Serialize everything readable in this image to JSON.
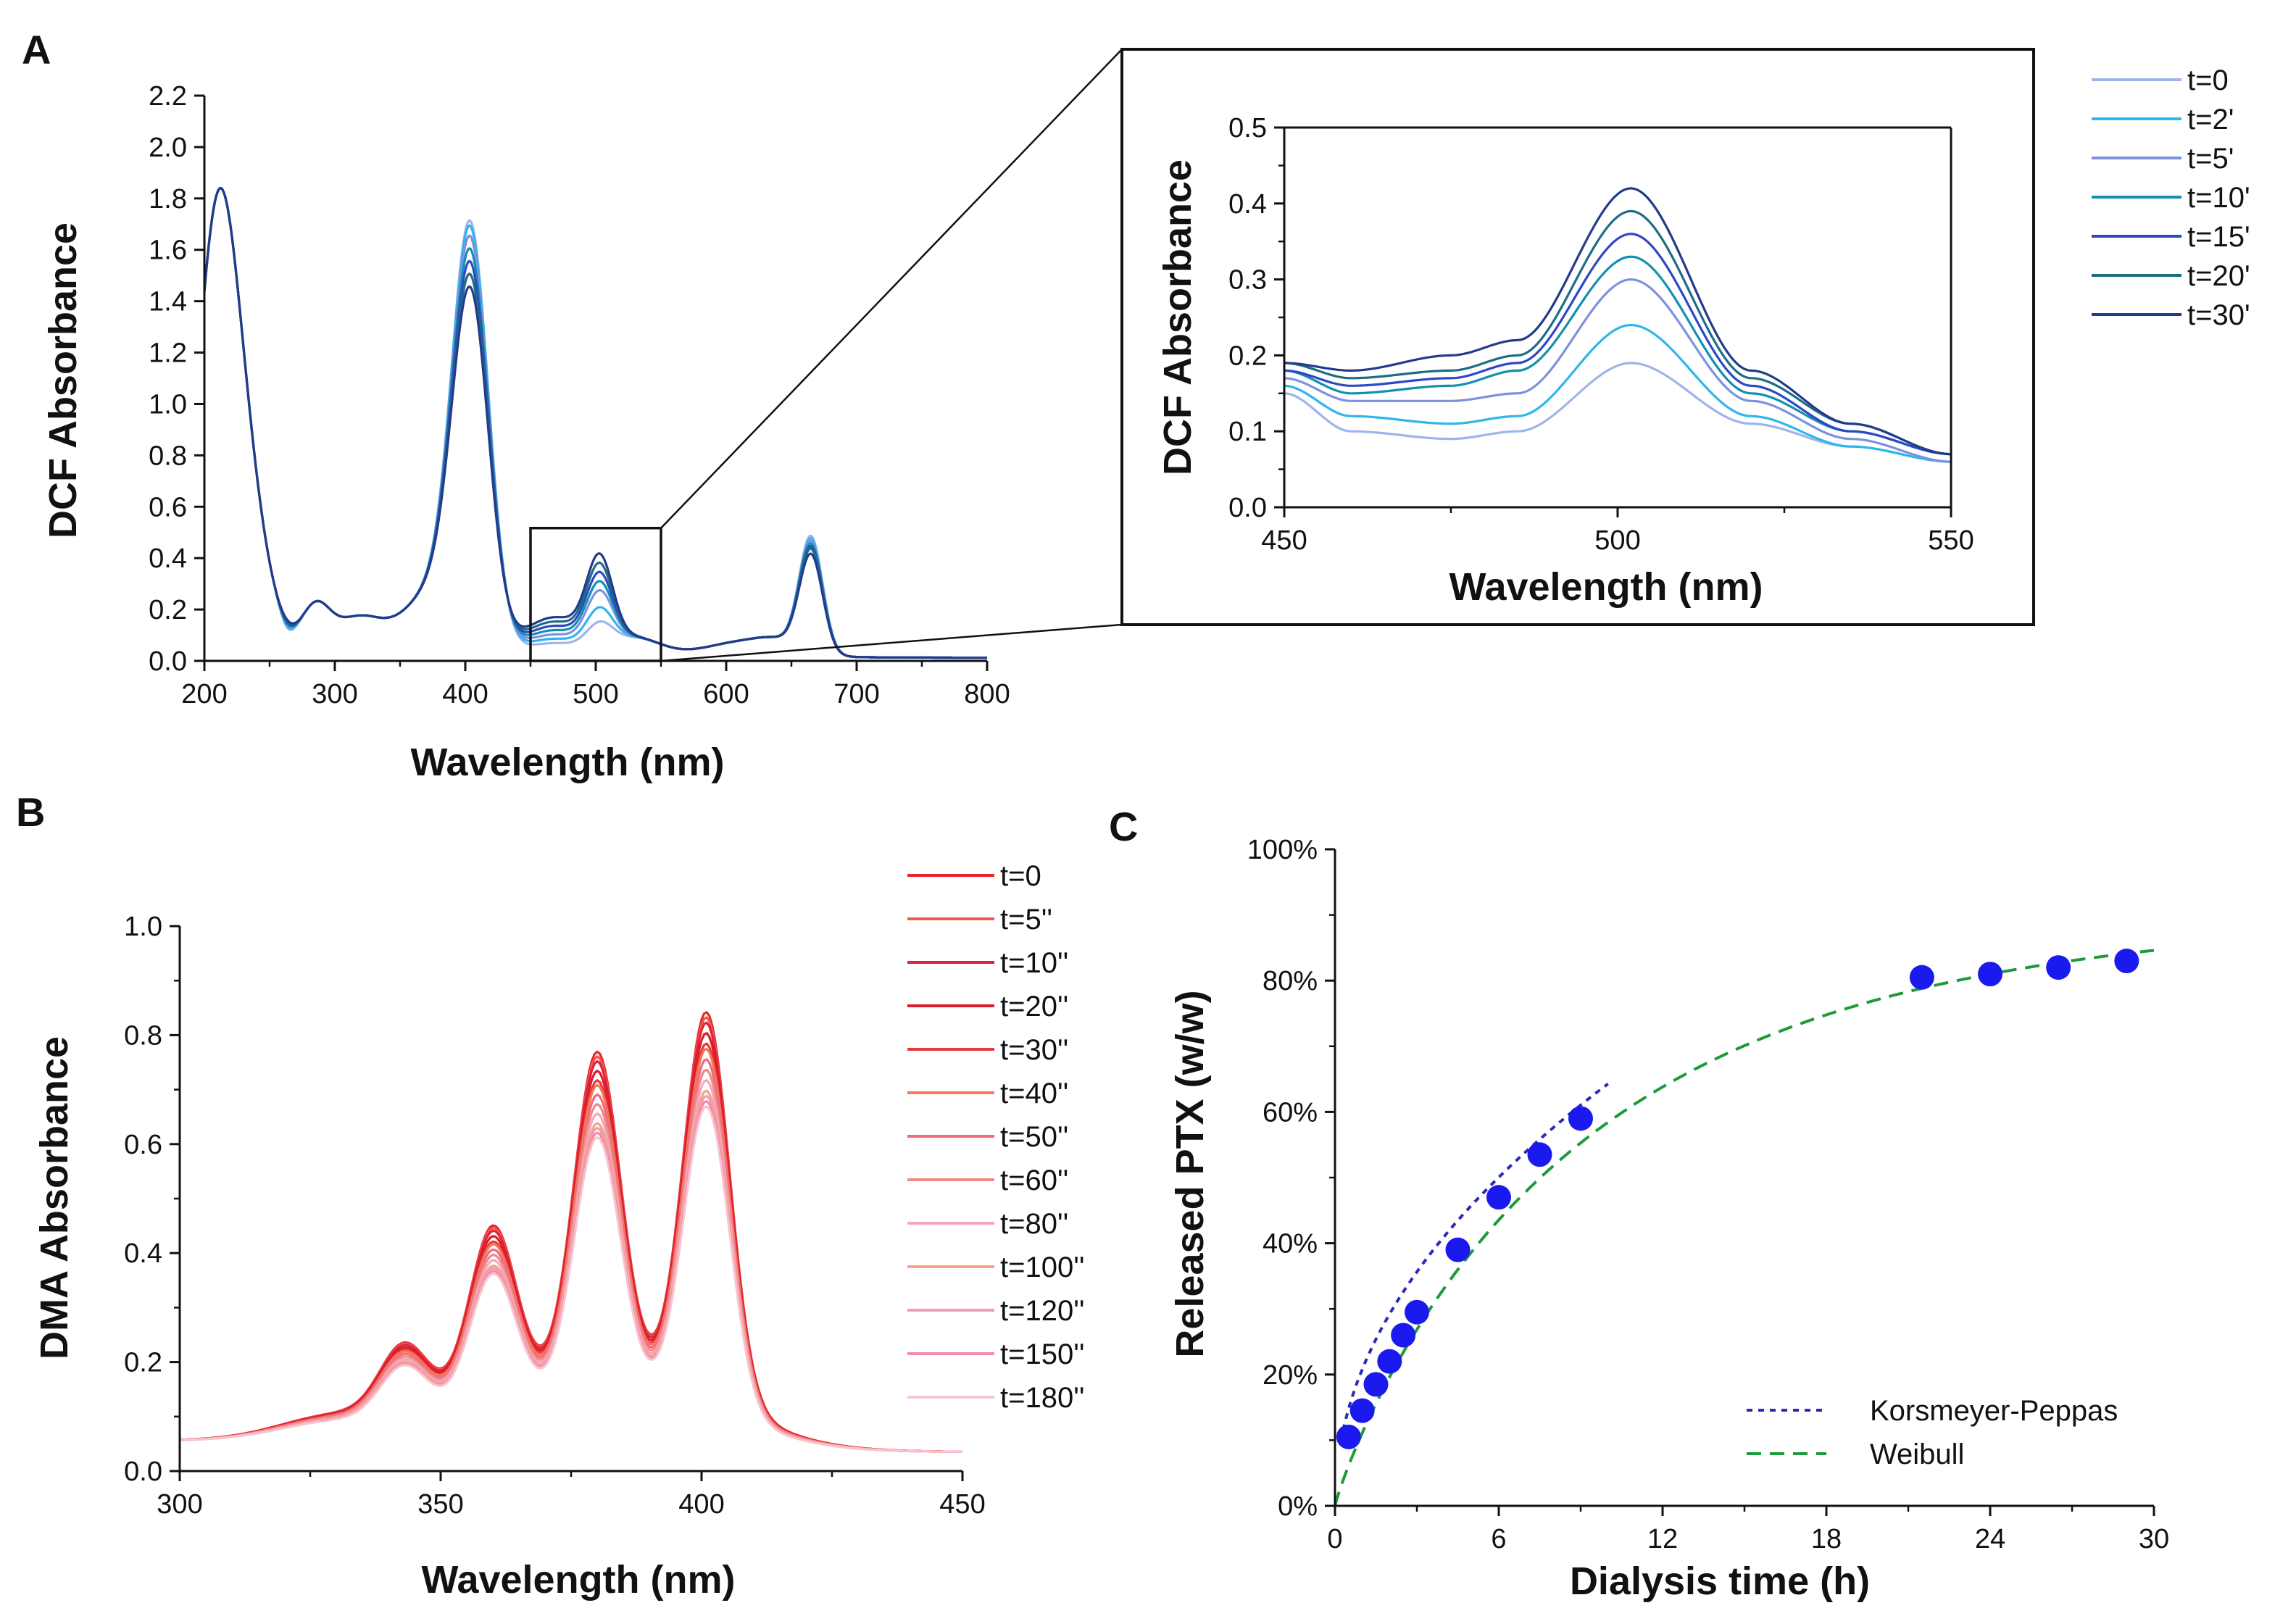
{
  "figure": {
    "panels": [
      {
        "label": "A"
      },
      {
        "label": "B"
      },
      {
        "label": "C"
      }
    ]
  },
  "chart_data": [
    {
      "id": "A-main",
      "type": "line",
      "xlabel": "Wavelength (nm)",
      "ylabel": "DCF Absorbance",
      "xlim": [
        200,
        800
      ],
      "ylim": [
        0,
        2.2
      ],
      "xticks": [
        200,
        300,
        400,
        500,
        600,
        700,
        800
      ],
      "yticks": [
        0.0,
        0.2,
        0.4,
        0.6,
        0.8,
        1.0,
        1.2,
        1.4,
        1.6,
        1.8,
        2.0,
        2.2
      ],
      "tick_decimals": 1,
      "zoom_box_x": [
        450,
        550
      ],
      "zoom_box_y": [
        0,
        0.5
      ],
      "series": [
        {
          "name": "t=0",
          "color": "#9fb4ea",
          "peak404": 1.71,
          "peak502": 0.19,
          "peak665": 0.52
        },
        {
          "name": "t=2'",
          "color": "#2eb6ec",
          "peak404": 1.69,
          "peak502": 0.24,
          "peak665": 0.51
        },
        {
          "name": "t=5'",
          "color": "#7d92de",
          "peak404": 1.65,
          "peak502": 0.3,
          "peak665": 0.5
        },
        {
          "name": "t=10'",
          "color": "#1390b0",
          "peak404": 1.6,
          "peak502": 0.33,
          "peak665": 0.49
        },
        {
          "name": "t=15'",
          "color": "#2e48c4",
          "peak404": 1.55,
          "peak502": 0.36,
          "peak665": 0.48
        },
        {
          "name": "t=20'",
          "color": "#1d6e82",
          "peak404": 1.5,
          "peak502": 0.39,
          "peak665": 0.47
        },
        {
          "name": "t=30'",
          "color": "#243a8a",
          "peak404": 1.45,
          "peak502": 0.42,
          "peak665": 0.45
        }
      ]
    },
    {
      "id": "A-inset",
      "type": "line",
      "xlabel": "Wavelength (nm)",
      "ylabel": "DCF Absorbance",
      "xlim": [
        450,
        550
      ],
      "ylim": [
        0,
        0.5
      ],
      "xticks": [
        450,
        500,
        550
      ],
      "yticks": [
        0.0,
        0.1,
        0.2,
        0.3,
        0.4,
        0.5
      ],
      "tick_decimals": 1,
      "series": [
        {
          "name": "t=0",
          "color": "#9fb4ea",
          "values_at": {
            "450": 0.15,
            "460": 0.1,
            "475": 0.09,
            "485": 0.1,
            "502": 0.19,
            "520": 0.11,
            "535": 0.08,
            "550": 0.06
          }
        },
        {
          "name": "t=2'",
          "color": "#2eb6ec",
          "values_at": {
            "450": 0.16,
            "460": 0.12,
            "475": 0.11,
            "485": 0.12,
            "502": 0.24,
            "520": 0.12,
            "535": 0.08,
            "550": 0.06
          }
        },
        {
          "name": "t=5'",
          "color": "#7d92de",
          "values_at": {
            "450": 0.17,
            "460": 0.14,
            "475": 0.14,
            "485": 0.15,
            "502": 0.3,
            "520": 0.14,
            "535": 0.09,
            "550": 0.06
          }
        },
        {
          "name": "t=10'",
          "color": "#1390b0",
          "values_at": {
            "450": 0.18,
            "460": 0.15,
            "475": 0.16,
            "485": 0.18,
            "502": 0.33,
            "520": 0.15,
            "535": 0.1,
            "550": 0.07
          }
        },
        {
          "name": "t=15'",
          "color": "#2e48c4",
          "values_at": {
            "450": 0.18,
            "460": 0.16,
            "475": 0.17,
            "485": 0.19,
            "502": 0.36,
            "520": 0.16,
            "535": 0.1,
            "550": 0.07
          }
        },
        {
          "name": "t=20'",
          "color": "#1d6e82",
          "values_at": {
            "450": 0.19,
            "460": 0.17,
            "475": 0.18,
            "485": 0.2,
            "502": 0.39,
            "520": 0.17,
            "535": 0.11,
            "550": 0.07
          }
        },
        {
          "name": "t=30'",
          "color": "#243a8a",
          "values_at": {
            "450": 0.19,
            "460": 0.18,
            "475": 0.2,
            "485": 0.22,
            "502": 0.42,
            "520": 0.18,
            "535": 0.11,
            "550": 0.07
          }
        }
      ]
    },
    {
      "id": "B",
      "type": "line",
      "xlabel": "Wavelength (nm)",
      "ylabel": "DMA Absorbance",
      "xlim": [
        300,
        450
      ],
      "ylim": [
        0,
        1.0
      ],
      "xticks": [
        300,
        350,
        400,
        450
      ],
      "yticks": [
        0.0,
        0.2,
        0.4,
        0.6,
        0.8,
        1.0
      ],
      "tick_decimals": 1,
      "series": [
        {
          "name": "t=0",
          "color": "#e8282c",
          "peak401": 0.84
        },
        {
          "name": "t=5''",
          "color": "#ee5a4a",
          "peak401": 0.83
        },
        {
          "name": "t=10''",
          "color": "#e0203c",
          "peak401": 0.82
        },
        {
          "name": "t=20''",
          "color": "#d81e2a",
          "peak401": 0.8
        },
        {
          "name": "t=30''",
          "color": "#e8383a",
          "peak401": 0.78
        },
        {
          "name": "t=40''",
          "color": "#f27a58",
          "peak401": 0.77
        },
        {
          "name": "t=50''",
          "color": "#f06a80",
          "peak401": 0.75
        },
        {
          "name": "t=60''",
          "color": "#ef8a86",
          "peak401": 0.73
        },
        {
          "name": "t=80''",
          "color": "#f3a7b8",
          "peak401": 0.71
        },
        {
          "name": "t=100''",
          "color": "#f5a48a",
          "peak401": 0.69
        },
        {
          "name": "t=120''",
          "color": "#f29cb0",
          "peak401": 0.68
        },
        {
          "name": "t=150''",
          "color": "#f68aa8",
          "peak401": 0.67
        },
        {
          "name": "t=180''",
          "color": "#f8c4cc",
          "peak401": 0.66
        }
      ]
    },
    {
      "id": "C",
      "type": "scatter",
      "xlabel": "Dialysis time (h)",
      "ylabel": "Released PTX (w/w)",
      "xlim": [
        0,
        30
      ],
      "ylim": [
        0,
        100
      ],
      "xticks": [
        0,
        6,
        12,
        18,
        24,
        30
      ],
      "yticks": [
        0,
        20,
        40,
        60,
        80,
        100
      ],
      "y_unit": "%",
      "x": [
        0.5,
        1.0,
        1.5,
        2.0,
        2.5,
        3.0,
        4.5,
        6.0,
        7.5,
        9.0,
        21.5,
        24.0,
        26.5,
        29.0
      ],
      "y": [
        10.5,
        14.5,
        18.5,
        22.0,
        26.0,
        29.5,
        39.0,
        47.0,
        53.5,
        59.0,
        80.5,
        81.0,
        82.0,
        83.0
      ],
      "point_color": "#1a1aee",
      "fits": [
        {
          "name": "Korsmeyer-Peppas",
          "color": "#2a2ab8",
          "dash": "dot",
          "k": 20.8,
          "n": 0.49,
          "x_range": [
            0.3,
            10.0
          ]
        },
        {
          "name": "Weibull",
          "color": "#1d9a3a",
          "dash": "dash",
          "fmax": 90.0,
          "scale": 9.5,
          "shape": 0.9,
          "x_range": [
            0.0,
            30.0
          ]
        }
      ],
      "legend_position": "bottom-right"
    }
  ]
}
